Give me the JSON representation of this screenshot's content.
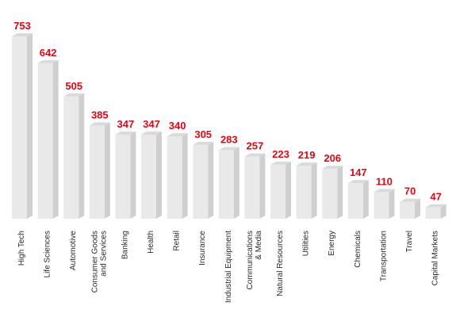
{
  "chart_data": {
    "type": "bar",
    "title": "",
    "xlabel": "",
    "ylabel": "",
    "ylim": [
      0,
      753
    ],
    "grid": false,
    "legend": "none",
    "categories": [
      "High Tech",
      "Life Sciences",
      "Automotive",
      "Consumer Goods\nand Services",
      "Banking",
      "Health",
      "Retail",
      "Insurance",
      "Industrial Equipment",
      "Communications\n& Media",
      "Natural Resources",
      "Utilities",
      "Energy",
      "Chemicals",
      "Transportation",
      "Travel",
      "Capital Markets"
    ],
    "values": [
      753,
      642,
      505,
      385,
      347,
      347,
      340,
      305,
      283,
      257,
      223,
      219,
      206,
      147,
      110,
      70,
      47
    ],
    "value_labels": [
      "753",
      "642",
      "505",
      "385",
      "347",
      "347",
      "340",
      "305",
      "283",
      "257",
      "223",
      "219",
      "206",
      "147",
      "110",
      "70",
      "47"
    ],
    "colors": {
      "bar_front": "#e9e9e9",
      "bar_side": "#cfcfcf",
      "bar_top": "#dadada",
      "value_label": "#e30613",
      "category_label": "#2b2b2b"
    }
  }
}
